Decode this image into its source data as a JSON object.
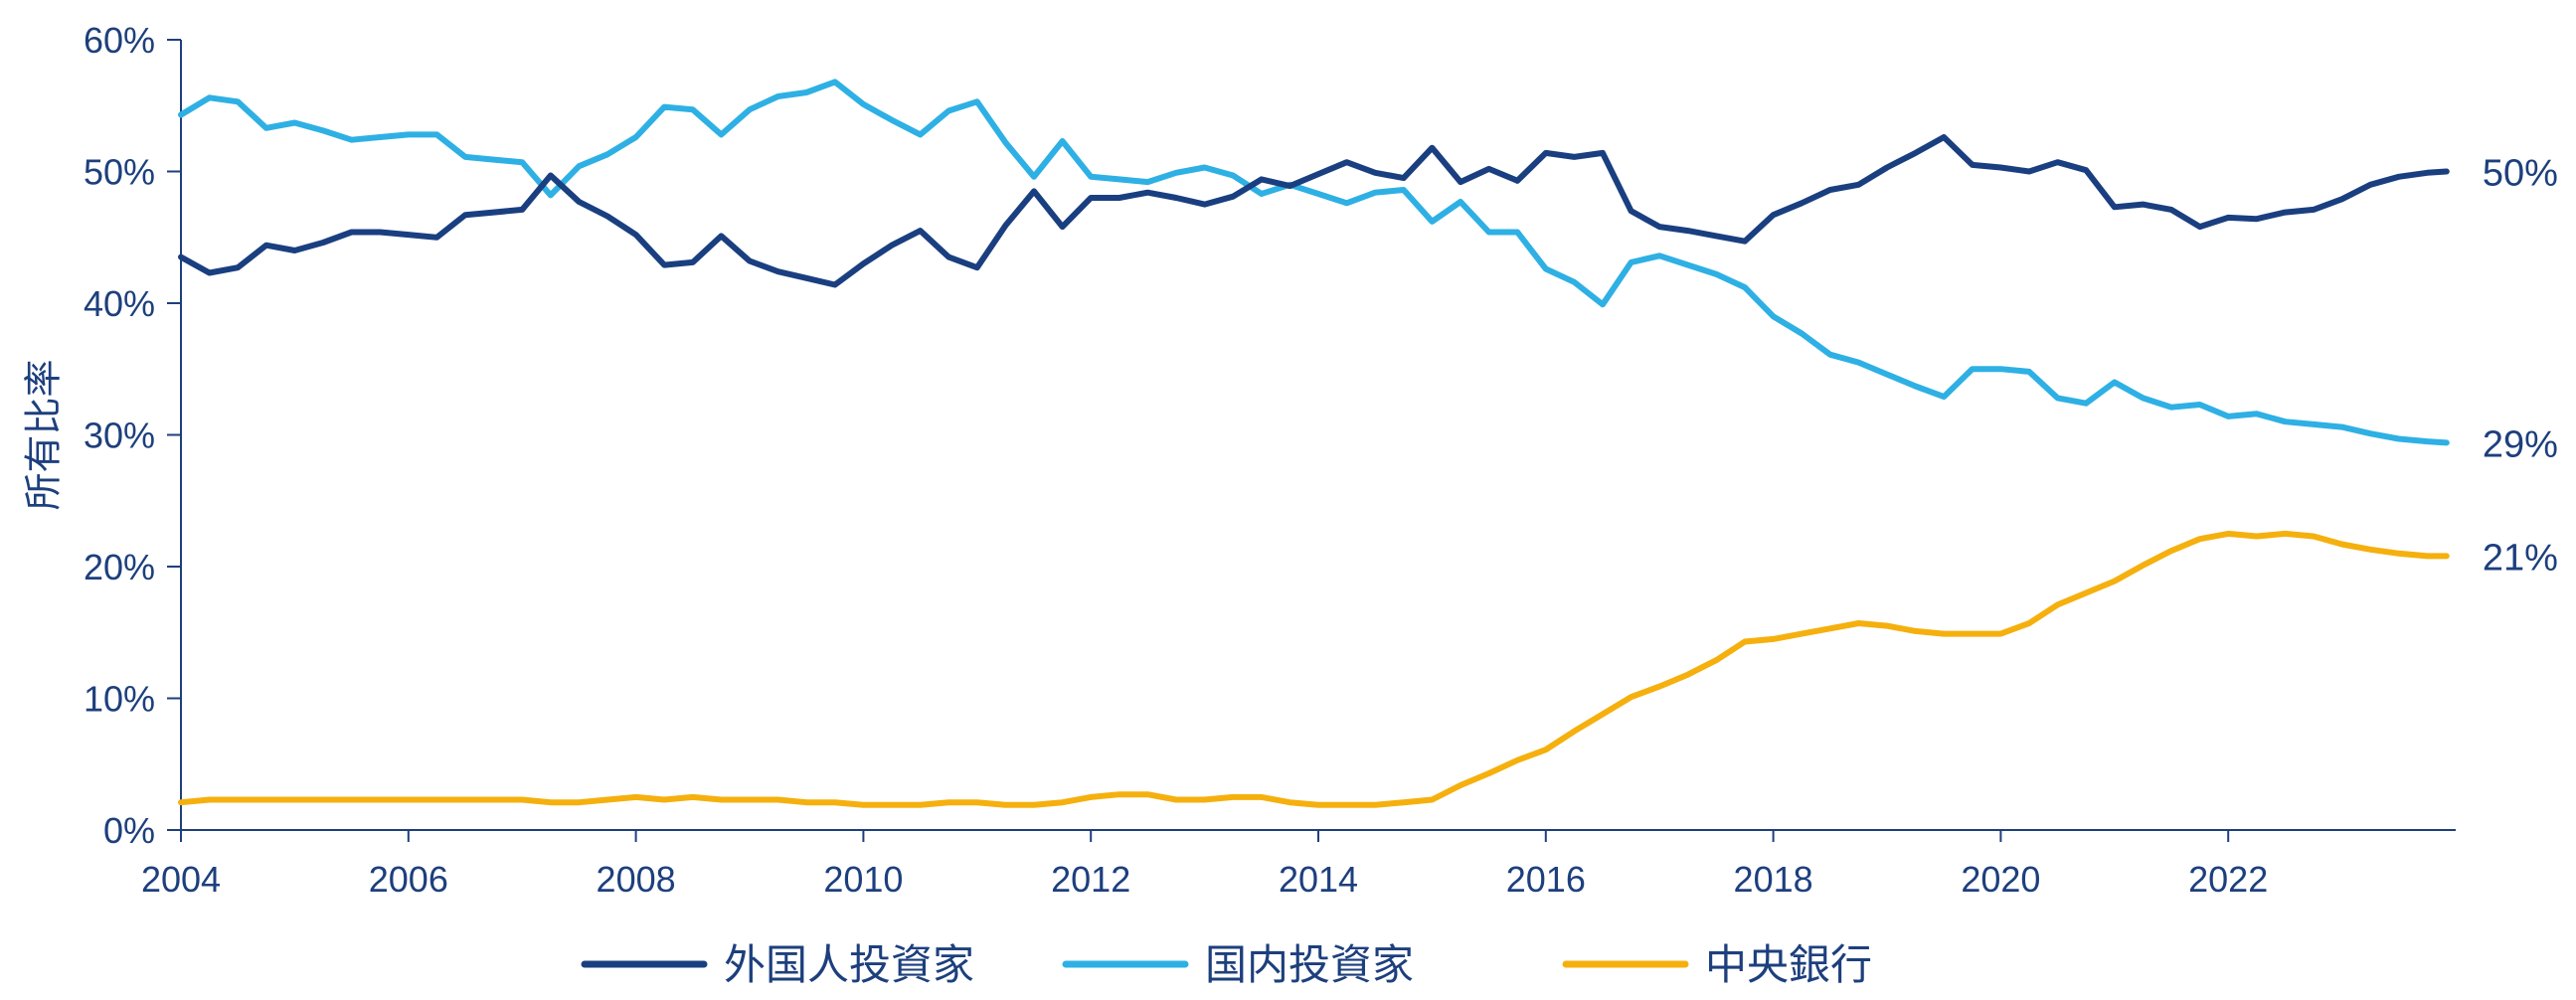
{
  "chart_data": {
    "type": "line",
    "xlabel": "",
    "ylabel": "所有比率",
    "xlim": [
      2004,
      2024
    ],
    "ylim": [
      0,
      60
    ],
    "x_ticks": [
      "2004",
      "2006",
      "2008",
      "2010",
      "2012",
      "2014",
      "2016",
      "2018",
      "2020",
      "2022"
    ],
    "y_ticks": [
      "0%",
      "10%",
      "20%",
      "30%",
      "40%",
      "50%",
      "60%"
    ],
    "grid": false,
    "legend_position": "bottom",
    "end_labels": [
      "50%",
      "29%",
      "21%"
    ],
    "series": [
      {
        "name": "外国人投資家",
        "color": "#1a3f80",
        "x": [
          2004.0,
          2004.25,
          2004.5,
          2004.75,
          2005.0,
          2005.25,
          2005.5,
          2005.75,
          2006.0,
          2006.25,
          2006.5,
          2006.75,
          2007.0,
          2007.25,
          2007.5,
          2007.75,
          2008.0,
          2008.25,
          2008.5,
          2008.75,
          2009.0,
          2009.25,
          2009.5,
          2009.75,
          2010.0,
          2010.25,
          2010.5,
          2010.75,
          2011.0,
          2011.25,
          2011.5,
          2011.75,
          2012.0,
          2012.25,
          2012.5,
          2012.75,
          2013.0,
          2013.25,
          2013.5,
          2013.75,
          2014.0,
          2014.25,
          2014.5,
          2014.75,
          2015.0,
          2015.25,
          2015.5,
          2015.75,
          2016.0,
          2016.25,
          2016.5,
          2016.75,
          2017.0,
          2017.25,
          2017.5,
          2017.75,
          2018.0,
          2018.25,
          2018.5,
          2018.75,
          2019.0,
          2019.25,
          2019.5,
          2019.75,
          2020.0,
          2020.25,
          2020.5,
          2020.75,
          2021.0,
          2021.25,
          2021.5,
          2021.75,
          2022.0,
          2022.25,
          2022.5,
          2022.75,
          2023.0,
          2023.25,
          2023.5,
          2023.75,
          2023.92
        ],
        "values": [
          43.5,
          42.3,
          42.7,
          44.4,
          44.0,
          44.6,
          45.4,
          45.4,
          45.2,
          45.0,
          46.7,
          46.9,
          47.1,
          49.7,
          47.7,
          46.6,
          45.2,
          42.9,
          43.1,
          45.1,
          43.2,
          42.4,
          41.9,
          41.4,
          43.0,
          44.4,
          45.5,
          43.5,
          42.7,
          45.9,
          48.5,
          45.8,
          48.0,
          48.0,
          48.4,
          48.0,
          47.5,
          48.1,
          49.4,
          48.9,
          49.8,
          50.7,
          49.9,
          49.5,
          51.8,
          49.2,
          50.2,
          49.3,
          51.4,
          51.1,
          51.4,
          47.0,
          45.8,
          45.5,
          45.1,
          44.7,
          46.7,
          47.6,
          48.6,
          49.0,
          50.3,
          51.4,
          52.6,
          50.5,
          50.3,
          50.0,
          50.7,
          50.1,
          47.3,
          47.5,
          47.1,
          45.8,
          46.5,
          46.4,
          46.9,
          47.1,
          47.9,
          49.0,
          49.6,
          49.9,
          50.0
        ]
      },
      {
        "name": "国内投資家",
        "color": "#2eb0e4",
        "x": [
          2004.0,
          2004.25,
          2004.5,
          2004.75,
          2005.0,
          2005.25,
          2005.5,
          2005.75,
          2006.0,
          2006.25,
          2006.5,
          2006.75,
          2007.0,
          2007.25,
          2007.5,
          2007.75,
          2008.0,
          2008.25,
          2008.5,
          2008.75,
          2009.0,
          2009.25,
          2009.5,
          2009.75,
          2010.0,
          2010.25,
          2010.5,
          2010.75,
          2011.0,
          2011.25,
          2011.5,
          2011.75,
          2012.0,
          2012.25,
          2012.5,
          2012.75,
          2013.0,
          2013.25,
          2013.5,
          2013.75,
          2014.0,
          2014.25,
          2014.5,
          2014.75,
          2015.0,
          2015.25,
          2015.5,
          2015.75,
          2016.0,
          2016.25,
          2016.5,
          2016.75,
          2017.0,
          2017.25,
          2017.5,
          2017.75,
          2018.0,
          2018.25,
          2018.5,
          2018.75,
          2019.0,
          2019.25,
          2019.5,
          2019.75,
          2020.0,
          2020.25,
          2020.5,
          2020.75,
          2021.0,
          2021.25,
          2021.5,
          2021.75,
          2022.0,
          2022.25,
          2022.5,
          2022.75,
          2023.0,
          2023.25,
          2023.5,
          2023.75,
          2023.92
        ],
        "values": [
          54.3,
          55.6,
          55.3,
          53.3,
          53.7,
          53.1,
          52.4,
          52.6,
          52.8,
          52.8,
          51.1,
          50.9,
          50.7,
          48.2,
          50.4,
          51.3,
          52.6,
          54.9,
          54.7,
          52.8,
          54.7,
          55.7,
          56.0,
          56.8,
          55.1,
          53.9,
          52.8,
          54.6,
          55.3,
          52.2,
          49.6,
          52.3,
          49.6,
          49.4,
          49.2,
          49.9,
          50.3,
          49.7,
          48.3,
          49.0,
          48.3,
          47.6,
          48.4,
          48.6,
          46.2,
          47.7,
          45.4,
          45.4,
          42.6,
          41.6,
          39.9,
          43.1,
          43.6,
          42.9,
          42.2,
          41.2,
          39.0,
          37.7,
          36.1,
          35.5,
          34.6,
          33.7,
          32.9,
          35.0,
          35.0,
          34.8,
          32.8,
          32.4,
          34.0,
          32.8,
          32.1,
          32.3,
          31.4,
          31.6,
          31.0,
          30.8,
          30.6,
          30.1,
          29.7,
          29.5,
          29.4
        ]
      },
      {
        "name": "中央銀行",
        "color": "#f5b00e",
        "x": [
          2004.0,
          2004.25,
          2004.5,
          2004.75,
          2005.0,
          2005.25,
          2005.5,
          2005.75,
          2006.0,
          2006.25,
          2006.5,
          2006.75,
          2007.0,
          2007.25,
          2007.5,
          2007.75,
          2008.0,
          2008.25,
          2008.5,
          2008.75,
          2009.0,
          2009.25,
          2009.5,
          2009.75,
          2010.0,
          2010.25,
          2010.5,
          2010.75,
          2011.0,
          2011.25,
          2011.5,
          2011.75,
          2012.0,
          2012.25,
          2012.5,
          2012.75,
          2013.0,
          2013.25,
          2013.5,
          2013.75,
          2014.0,
          2014.25,
          2014.5,
          2014.75,
          2015.0,
          2015.25,
          2015.5,
          2015.75,
          2016.0,
          2016.25,
          2016.5,
          2016.75,
          2017.0,
          2017.25,
          2017.5,
          2017.75,
          2018.0,
          2018.25,
          2018.5,
          2018.75,
          2019.0,
          2019.25,
          2019.5,
          2019.75,
          2020.0,
          2020.25,
          2020.5,
          2020.75,
          2021.0,
          2021.25,
          2021.5,
          2021.75,
          2022.0,
          2022.25,
          2022.5,
          2022.75,
          2023.0,
          2023.25,
          2023.5,
          2023.75,
          2023.92
        ],
        "values": [
          2.1,
          2.3,
          2.3,
          2.3,
          2.3,
          2.3,
          2.3,
          2.3,
          2.3,
          2.3,
          2.3,
          2.3,
          2.3,
          2.1,
          2.1,
          2.3,
          2.5,
          2.3,
          2.5,
          2.3,
          2.3,
          2.3,
          2.1,
          2.1,
          1.9,
          1.9,
          1.9,
          2.1,
          2.1,
          1.9,
          1.9,
          2.1,
          2.5,
          2.7,
          2.7,
          2.3,
          2.3,
          2.5,
          2.5,
          2.1,
          1.9,
          1.9,
          1.9,
          2.1,
          2.3,
          3.4,
          4.3,
          5.3,
          6.1,
          7.5,
          8.8,
          10.1,
          10.9,
          11.8,
          12.9,
          14.3,
          14.5,
          14.9,
          15.3,
          15.7,
          15.5,
          15.1,
          14.9,
          14.9,
          14.9,
          15.7,
          17.1,
          18.0,
          18.9,
          20.1,
          21.2,
          22.1,
          22.5,
          22.3,
          22.5,
          22.3,
          21.7,
          21.3,
          21.0,
          20.8,
          20.8
        ]
      }
    ]
  }
}
